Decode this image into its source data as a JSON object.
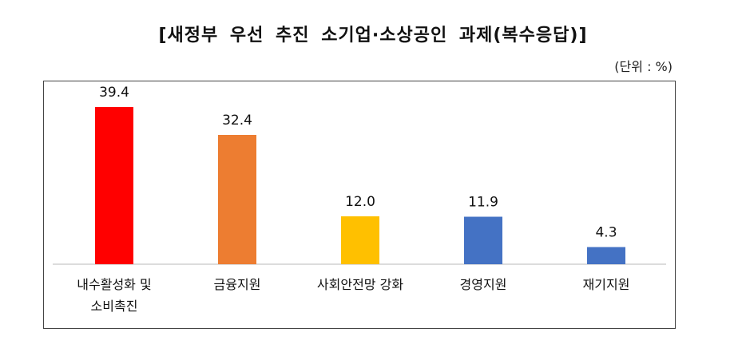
{
  "title": "[새정부 우선 추진 소기업·소상공인 과제(복수응답)]",
  "unit_label": "(단위 : %)",
  "chart_data": {
    "type": "bar",
    "categories": [
      "내수활성화 및\n소비촉진",
      "금융지원",
      "사회안전망 강화",
      "경영지원",
      "재기지원"
    ],
    "values": [
      39.4,
      32.4,
      12.0,
      11.9,
      4.3
    ],
    "value_labels": [
      "39.4",
      "32.4",
      "12.0",
      "11.9",
      "4.3"
    ],
    "colors": [
      "#ff0000",
      "#ed7d31",
      "#ffc000",
      "#4472c4",
      "#4472c4"
    ],
    "ylim": [
      0,
      44
    ],
    "grid": false,
    "legend": "none"
  }
}
